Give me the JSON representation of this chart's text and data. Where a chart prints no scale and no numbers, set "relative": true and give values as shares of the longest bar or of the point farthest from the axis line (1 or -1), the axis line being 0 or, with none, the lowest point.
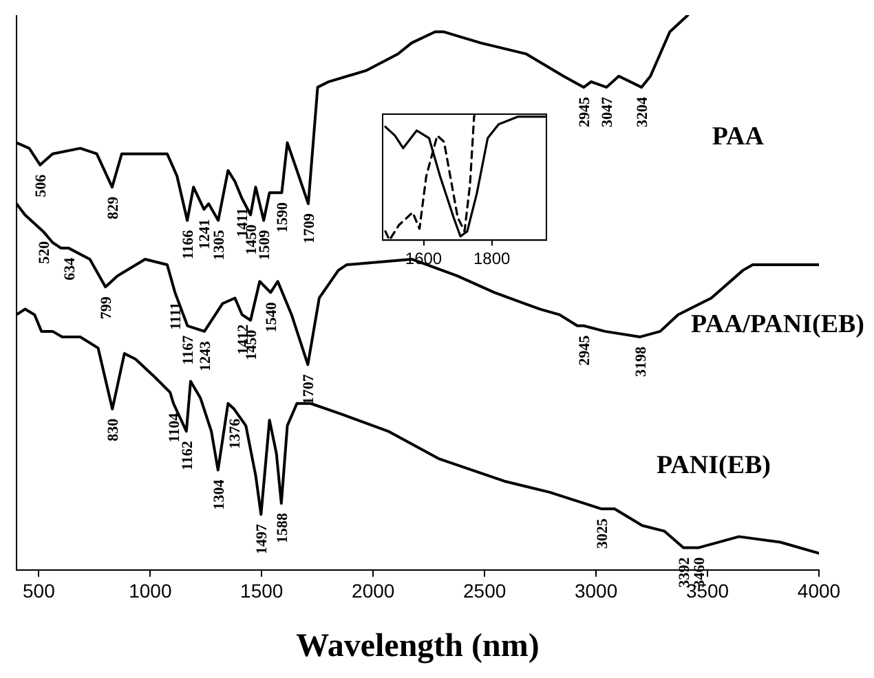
{
  "chart_data": [
    {
      "type": "line",
      "relative": true,
      "xlabel": "Wavelength (nm)",
      "xlim": [
        400,
        4000
      ],
      "xticks": [
        500,
        1000,
        1500,
        2000,
        2500,
        3000,
        3500,
        4000
      ],
      "legend": false,
      "marker": "none",
      "line_style": "solid",
      "series": [
        {
          "name": "PAA",
          "color": "#000000",
          "x": [
            400,
            457,
            506,
            562,
            686,
            760,
            829,
            872,
            1076,
            1120,
            1166,
            1194,
            1241,
            1262,
            1305,
            1349,
            1380,
            1411,
            1450,
            1473,
            1509,
            1535,
            1566,
            1590,
            1615,
            1658,
            1709,
            1751,
            1801,
            1968,
            2111,
            2173,
            2278,
            2315,
            2482,
            2687,
            2854,
            2945,
            2978,
            3047,
            3102,
            3204,
            3244,
            3331,
            3412
          ],
          "values": [
            0.77,
            0.76,
            0.73,
            0.75,
            0.76,
            0.75,
            0.69,
            0.75,
            0.75,
            0.71,
            0.63,
            0.69,
            0.65,
            0.66,
            0.63,
            0.72,
            0.7,
            0.67,
            0.64,
            0.69,
            0.63,
            0.68,
            0.68,
            0.68,
            0.77,
            0.72,
            0.66,
            0.87,
            0.88,
            0.9,
            0.93,
            0.95,
            0.97,
            0.97,
            0.95,
            0.93,
            0.89,
            0.87,
            0.88,
            0.87,
            0.89,
            0.87,
            0.89,
            0.97,
            1.0
          ]
        },
        {
          "name": "PAA/PANI(EB)",
          "color": "#000000",
          "x": [
            400,
            438,
            520,
            562,
            600,
            634,
            729,
            799,
            853,
            977,
            1076,
            1111,
            1167,
            1243,
            1324,
            1380,
            1412,
            1450,
            1491,
            1540,
            1572,
            1634,
            1707,
            1758,
            1844,
            1881,
            2173,
            2377,
            2544,
            2749,
            2836,
            2916,
            2945,
            3040,
            3198,
            3288,
            3368,
            3517,
            3659,
            3703,
            4000
          ],
          "values": [
            0.66,
            0.64,
            0.61,
            0.59,
            0.58,
            0.58,
            0.56,
            0.51,
            0.53,
            0.56,
            0.55,
            0.5,
            0.44,
            0.43,
            0.48,
            0.49,
            0.46,
            0.45,
            0.52,
            0.5,
            0.52,
            0.46,
            0.37,
            0.49,
            0.54,
            0.55,
            0.56,
            0.53,
            0.5,
            0.47,
            0.46,
            0.44,
            0.44,
            0.43,
            0.42,
            0.43,
            0.46,
            0.49,
            0.54,
            0.55,
            0.55
          ]
        },
        {
          "name": "PANI(EB)",
          "color": "#000000",
          "x": [
            400,
            438,
            481,
            512,
            562,
            605,
            686,
            766,
            830,
            884,
            934,
            1014,
            1089,
            1104,
            1162,
            1181,
            1225,
            1274,
            1304,
            1349,
            1376,
            1429,
            1473,
            1497,
            1535,
            1566,
            1588,
            1615,
            1658,
            1720,
            1863,
            2067,
            2297,
            2588,
            2792,
            3025,
            3083,
            3207,
            3306,
            3392,
            3460,
            3641,
            3827,
            4000
          ],
          "values": [
            0.46,
            0.47,
            0.46,
            0.43,
            0.43,
            0.42,
            0.42,
            0.4,
            0.29,
            0.39,
            0.38,
            0.35,
            0.32,
            0.3,
            0.25,
            0.34,
            0.31,
            0.25,
            0.18,
            0.3,
            0.29,
            0.26,
            0.17,
            0.1,
            0.27,
            0.21,
            0.12,
            0.26,
            0.3,
            0.3,
            0.28,
            0.25,
            0.2,
            0.16,
            0.14,
            0.11,
            0.11,
            0.08,
            0.07,
            0.04,
            0.04,
            0.06,
            0.05,
            0.03
          ]
        }
      ],
      "annotations": [
        {
          "text": "506",
          "x": 506,
          "y": 0.73
        },
        {
          "text": "829",
          "x": 829,
          "y": 0.69
        },
        {
          "text": "1166",
          "x": 1166,
          "y": 0.63
        },
        {
          "text": "1241",
          "x": 1241,
          "y": 0.65
        },
        {
          "text": "1305",
          "x": 1305,
          "y": 0.63
        },
        {
          "text": "1411",
          "x": 1411,
          "y": 0.67
        },
        {
          "text": "1450",
          "x": 1450,
          "y": 0.64
        },
        {
          "text": "1509",
          "x": 1509,
          "y": 0.63
        },
        {
          "text": "1590",
          "x": 1590,
          "y": 0.68
        },
        {
          "text": "1709",
          "x": 1709,
          "y": 0.66
        },
        {
          "text": "2945",
          "x": 2945,
          "y": 0.87
        },
        {
          "text": "3047",
          "x": 3047,
          "y": 0.87
        },
        {
          "text": "3204",
          "x": 3204,
          "y": 0.87
        },
        {
          "text": "520",
          "x": 520,
          "y": 0.61
        },
        {
          "text": "634",
          "x": 634,
          "y": 0.58
        },
        {
          "text": "799",
          "x": 799,
          "y": 0.51
        },
        {
          "text": "1111",
          "x": 1111,
          "y": 0.5
        },
        {
          "text": "1167",
          "x": 1167,
          "y": 0.44
        },
        {
          "text": "1243",
          "x": 1243,
          "y": 0.43
        },
        {
          "text": "1412",
          "x": 1412,
          "y": 0.46
        },
        {
          "text": "1450",
          "x": 1450,
          "y": 0.45
        },
        {
          "text": "1540",
          "x": 1540,
          "y": 0.5
        },
        {
          "text": "1707",
          "x": 1707,
          "y": 0.37
        },
        {
          "text": "2945",
          "x": 2945,
          "y": 0.44
        },
        {
          "text": "3198",
          "x": 3198,
          "y": 0.42
        },
        {
          "text": "830",
          "x": 830,
          "y": 0.29
        },
        {
          "text": "1104",
          "x": 1104,
          "y": 0.3
        },
        {
          "text": "1162",
          "x": 1162,
          "y": 0.25
        },
        {
          "text": "1304",
          "x": 1304,
          "y": 0.18
        },
        {
          "text": "1376",
          "x": 1376,
          "y": 0.29
        },
        {
          "text": "1497",
          "x": 1497,
          "y": 0.1
        },
        {
          "text": "1588",
          "x": 1588,
          "y": 0.12
        },
        {
          "text": "3025",
          "x": 3025,
          "y": 0.11
        },
        {
          "text": "3392",
          "x": 3392,
          "y": 0.04
        },
        {
          "text": "3460",
          "x": 3460,
          "y": 0.04
        }
      ]
    },
    {
      "type": "line",
      "relative": true,
      "xlim": [
        1480,
        1960
      ],
      "xticks": [
        1600,
        1800
      ],
      "legend": false,
      "marker": "none",
      "series": [
        {
          "color": "#000000",
          "line_style": "solid",
          "x": [
            1488,
            1516,
            1540,
            1580,
            1616,
            1648,
            1688,
            1708,
            1728,
            1756,
            1788,
            1820,
            1876,
            1956
          ],
          "values": [
            0.9,
            0.83,
            0.73,
            0.87,
            0.81,
            0.51,
            0.18,
            0.03,
            0.07,
            0.37,
            0.81,
            0.92,
            0.98,
            0.98
          ]
        },
        {
          "color": "#000000",
          "line_style": "dashed",
          "x": [
            1488,
            1500,
            1528,
            1568,
            1588,
            1608,
            1640,
            1660,
            1700,
            1720,
            1736,
            1748,
            1750
          ],
          "values": [
            0.07,
            0.0,
            0.12,
            0.22,
            0.09,
            0.51,
            0.83,
            0.78,
            0.18,
            0.07,
            0.44,
            0.98,
            1.0
          ]
        }
      ]
    }
  ]
}
